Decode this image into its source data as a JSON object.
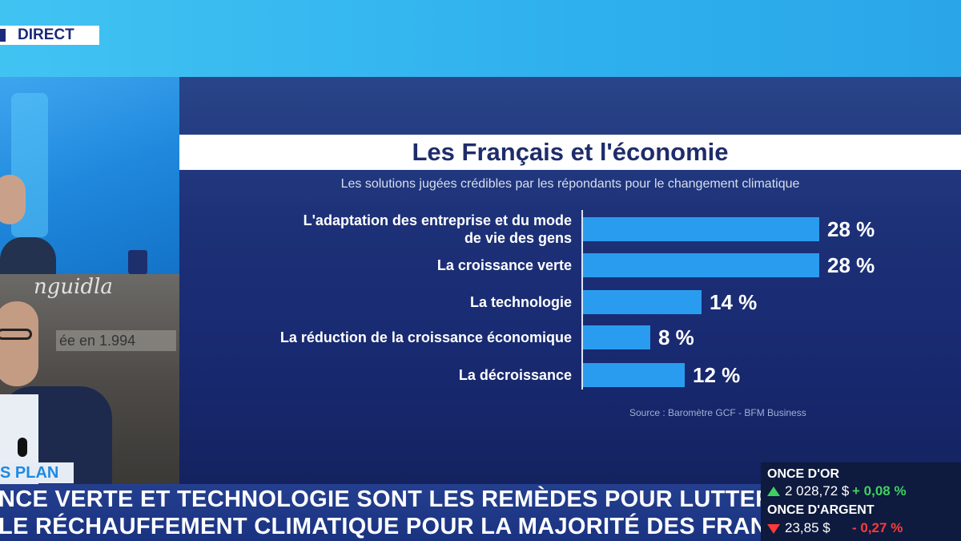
{
  "channel": {
    "live_label": "DIRECT"
  },
  "segment": {
    "label": "S PLAN"
  },
  "studio": {
    "sign_text": "nguidla",
    "plaque_text": "ée en 1.994"
  },
  "chart_data": {
    "type": "bar",
    "orientation": "horizontal",
    "title": "Les Français et l'économie",
    "subtitle": "Les solutions jugées crédibles par les répondants pour le changement climatique",
    "categories": [
      [
        "L'adaptation des entreprise et du mode",
        "de vie des gens"
      ],
      [
        "La croissance verte"
      ],
      [
        "La technologie"
      ],
      [
        "La réduction de la croissance économique"
      ],
      [
        "La décroissance"
      ]
    ],
    "values": [
      28,
      28,
      14,
      8,
      12
    ],
    "value_labels": [
      "28 %",
      "28 %",
      "14 %",
      "8 %",
      "12 %"
    ],
    "unit": "%",
    "xlim": [
      0,
      30
    ],
    "source": "Source : Baromètre GCF - BFM Business",
    "bar_color": "#2a9cf0"
  },
  "ticker": {
    "line1": "NCE VERTE ET TECHNOLOGIE SONT LES REMÈDES POUR LUTTER",
    "line2": "LE RÉCHAUFFEMENT CLIMATIQUE POUR LA MAJORITÉ DES FRANÇAIS"
  },
  "markets": [
    {
      "name": "ONCE D'OR",
      "price": "2 028,72 $",
      "change": "+ 0,08 %",
      "direction": "up"
    },
    {
      "name": "ONCE D'ARGENT",
      "price": "23,85 $",
      "change": "- 0,27 %",
      "direction": "down"
    }
  ]
}
